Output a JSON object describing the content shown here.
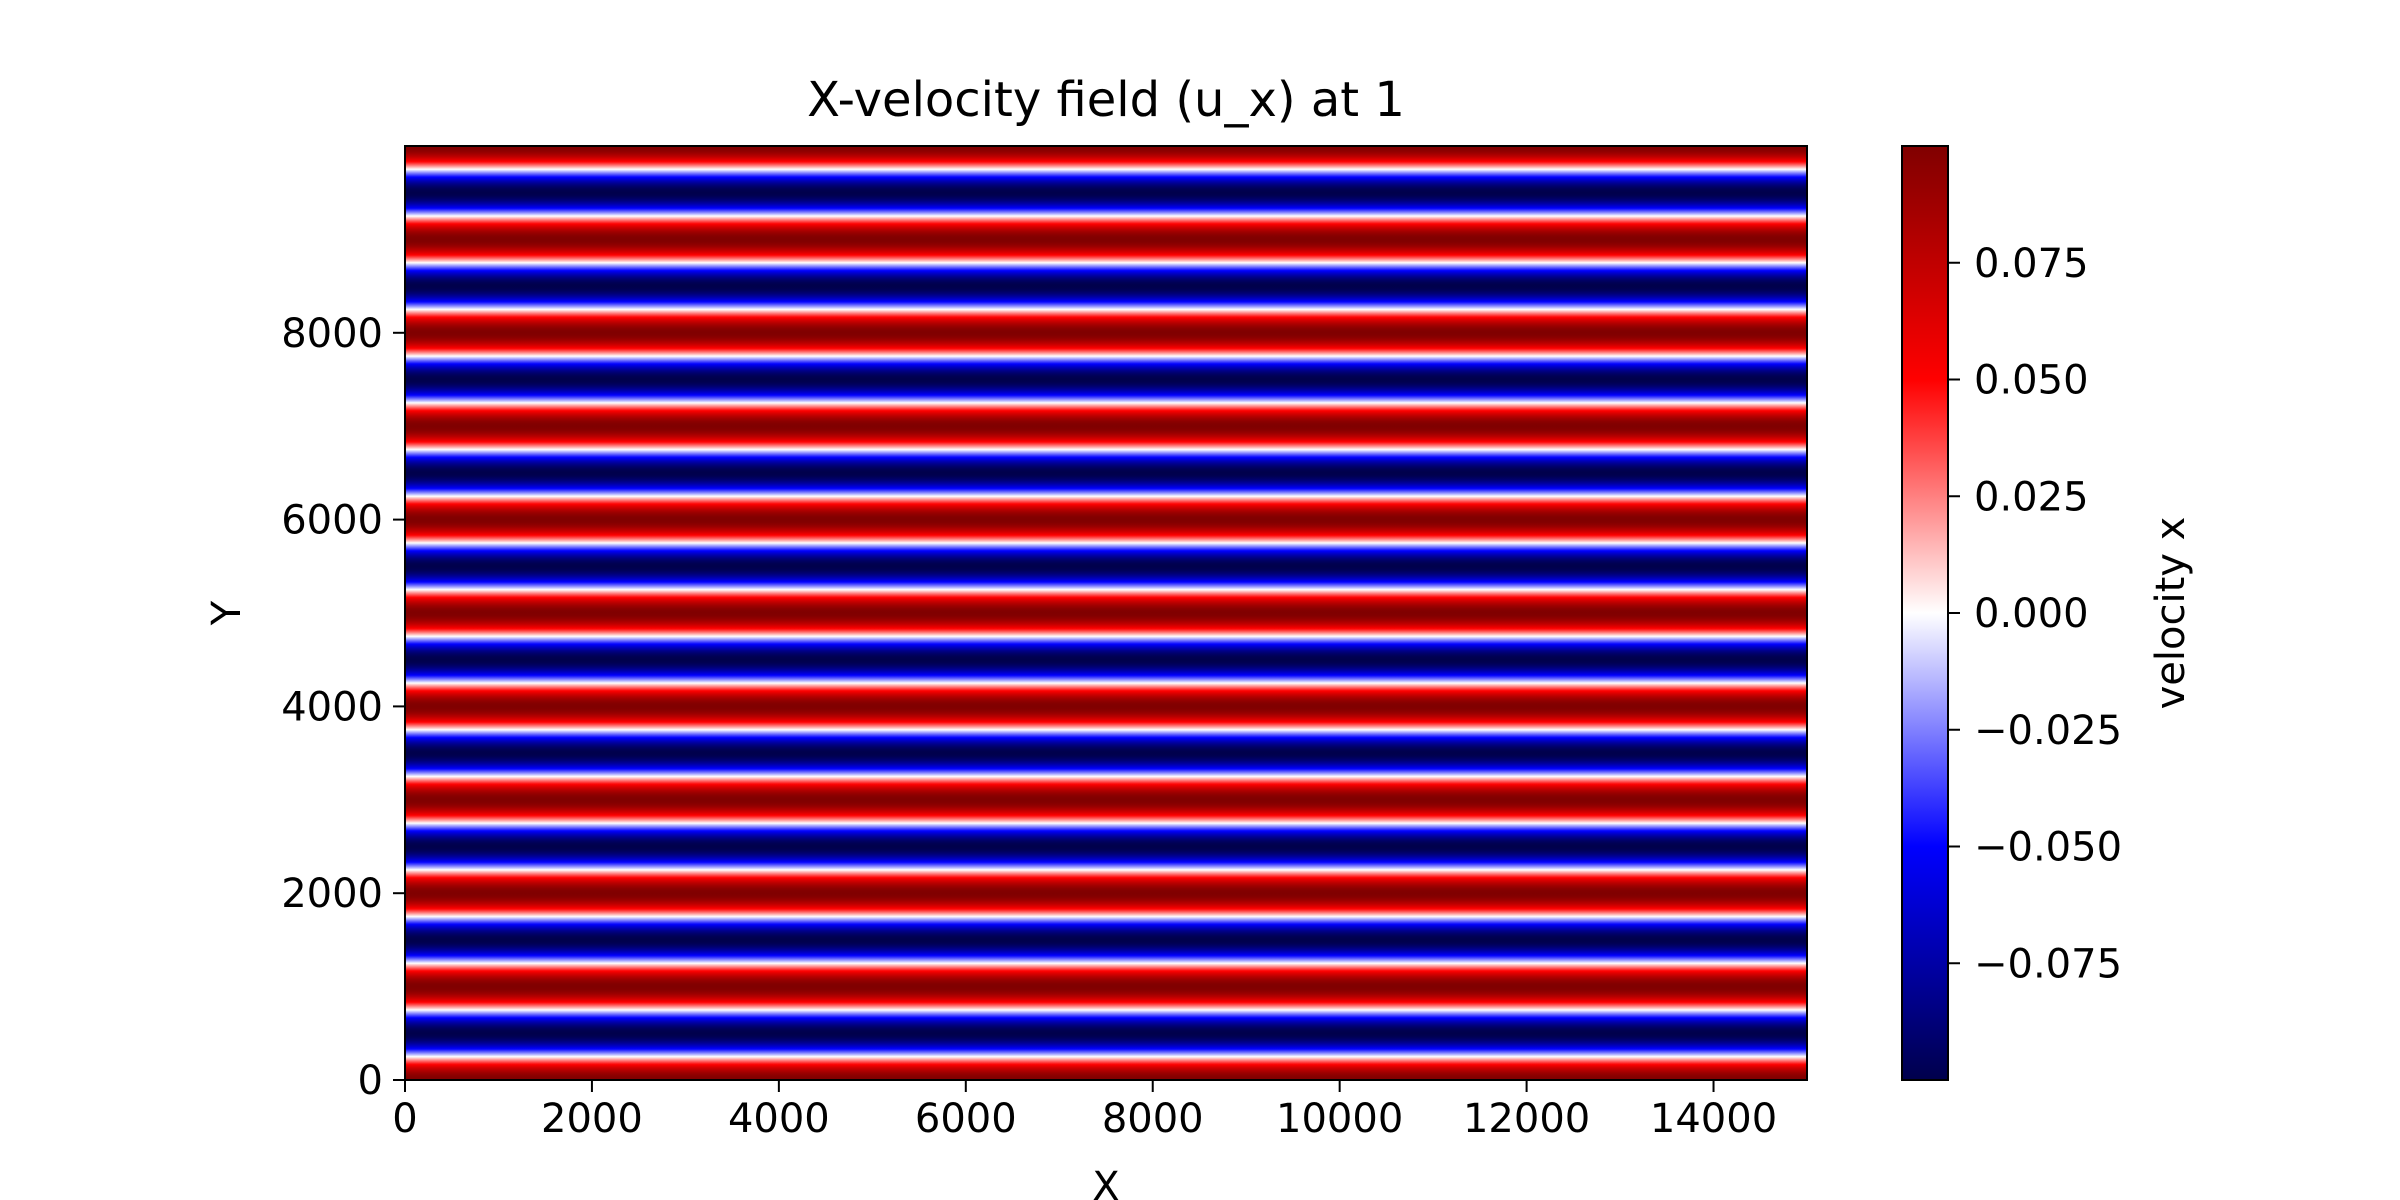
{
  "chart_data": {
    "type": "heatmap",
    "title": "X-velocity field (u_x) at 1",
    "xlabel": "X",
    "ylabel": "Y",
    "xlim": [
      0,
      15000
    ],
    "ylim": [
      0,
      10000
    ],
    "xticks": [
      0,
      2000,
      4000,
      6000,
      8000,
      10000,
      12000,
      14000
    ],
    "yticks": [
      0,
      2000,
      4000,
      6000,
      8000
    ],
    "x_tick_labels": [
      "0",
      "2000",
      "4000",
      "6000",
      "8000",
      "10000",
      "12000",
      "14000"
    ],
    "y_tick_labels": [
      "0",
      "2000",
      "4000",
      "6000",
      "8000"
    ],
    "field": {
      "description_of_pattern": "u_x varies only with Y, uniform along X",
      "amplitude": 0.1,
      "period_y": 1000,
      "value_at_y0": 0.1
    },
    "colorbar": {
      "label": "velocity x",
      "colormap": "seismic",
      "vmin": -0.1,
      "vmax": 0.1,
      "ticks": [
        -0.075,
        -0.05,
        -0.025,
        0.0,
        0.025,
        0.05,
        0.075
      ],
      "tick_labels": [
        "−0.075",
        "−0.050",
        "−0.025",
        "0.000",
        "0.025",
        "0.050",
        "0.075"
      ],
      "colors": [
        "#00004c",
        "#0000ff",
        "#ffffff",
        "#ff0000",
        "#800000"
      ]
    },
    "grid": false
  }
}
